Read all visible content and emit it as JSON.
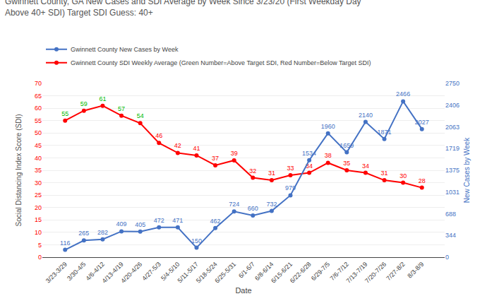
{
  "chart_data": {
    "type": "line",
    "title": "Gwinnett County, GA New Cases and SDI Average by Week Since 3/23/20 (First Weekday Day\nAbove 40+ SDI) Target SDI Guess: 40+",
    "x_label": "Date",
    "y_label": "Social Distancing Index Score (SDI)",
    "y2_label": "New Cases by Week",
    "categories": [
      "3/23-3/29",
      "3/30-4/5",
      "4/6-4/12",
      "4/13-4/19",
      "4/20-4/26",
      "4/27-5/3",
      "5/4-5/10",
      "5/11-5/17",
      "5/18-5/24",
      "6/25-5/31",
      "6/1-6/7",
      "6/8-6/14",
      "6/15-6/21",
      "6/22-6/28",
      "6/29-7/5",
      "7/6-7/12",
      "7/13-7/19",
      "7/20-7/26",
      "7/27-8/2",
      "8/3-8/9"
    ],
    "series": [
      {
        "name": "Gwinnett County New Cases by Week",
        "color": "#4472c4",
        "axis": "y2",
        "marker": "circle",
        "values": [
          116,
          265,
          282,
          409,
          405,
          472,
          471,
          150,
          462,
          724,
          660,
          732,
          979,
          1534,
          1960,
          1659,
          2140,
          1871,
          2466,
          2027
        ]
      },
      {
        "name": "Gwinnett County SDI Weekly Average (Green Number=Above Target SDI, Red Number=Below Target SDI)",
        "color": "#ff0000",
        "marker": "circle",
        "values": [
          55,
          59,
          61,
          57,
          54,
          46,
          42,
          41,
          37,
          39,
          32,
          31,
          33,
          34,
          38,
          35,
          34,
          31,
          30,
          28
        ],
        "colors": [
          "#00bb00",
          "#00bb00",
          "#00bb00",
          "#00bb00",
          "#00bb00",
          "#ff0000",
          "#ff0000",
          "#ff0000",
          "#ff0000",
          "#ff0000",
          "#ff0000",
          "#ff0000",
          "#ff0000",
          "#ff0000",
          "#ff0000",
          "#ff0000",
          "#ff0000",
          "#ff0000",
          "#ff0000",
          "#ff0000"
        ]
      }
    ],
    "ylim": [
      0,
      70
    ],
    "yticks": [
      0,
      5,
      10,
      15,
      20,
      25,
      30,
      35,
      40,
      45,
      50,
      55,
      60,
      65,
      70
    ],
    "y2lim": [
      0,
      2750
    ],
    "y2ticks": [
      0,
      344,
      688,
      1031,
      1375,
      1719,
      2063,
      2406,
      2750
    ],
    "grid": true,
    "legend": "top",
    "data_labels": true
  }
}
